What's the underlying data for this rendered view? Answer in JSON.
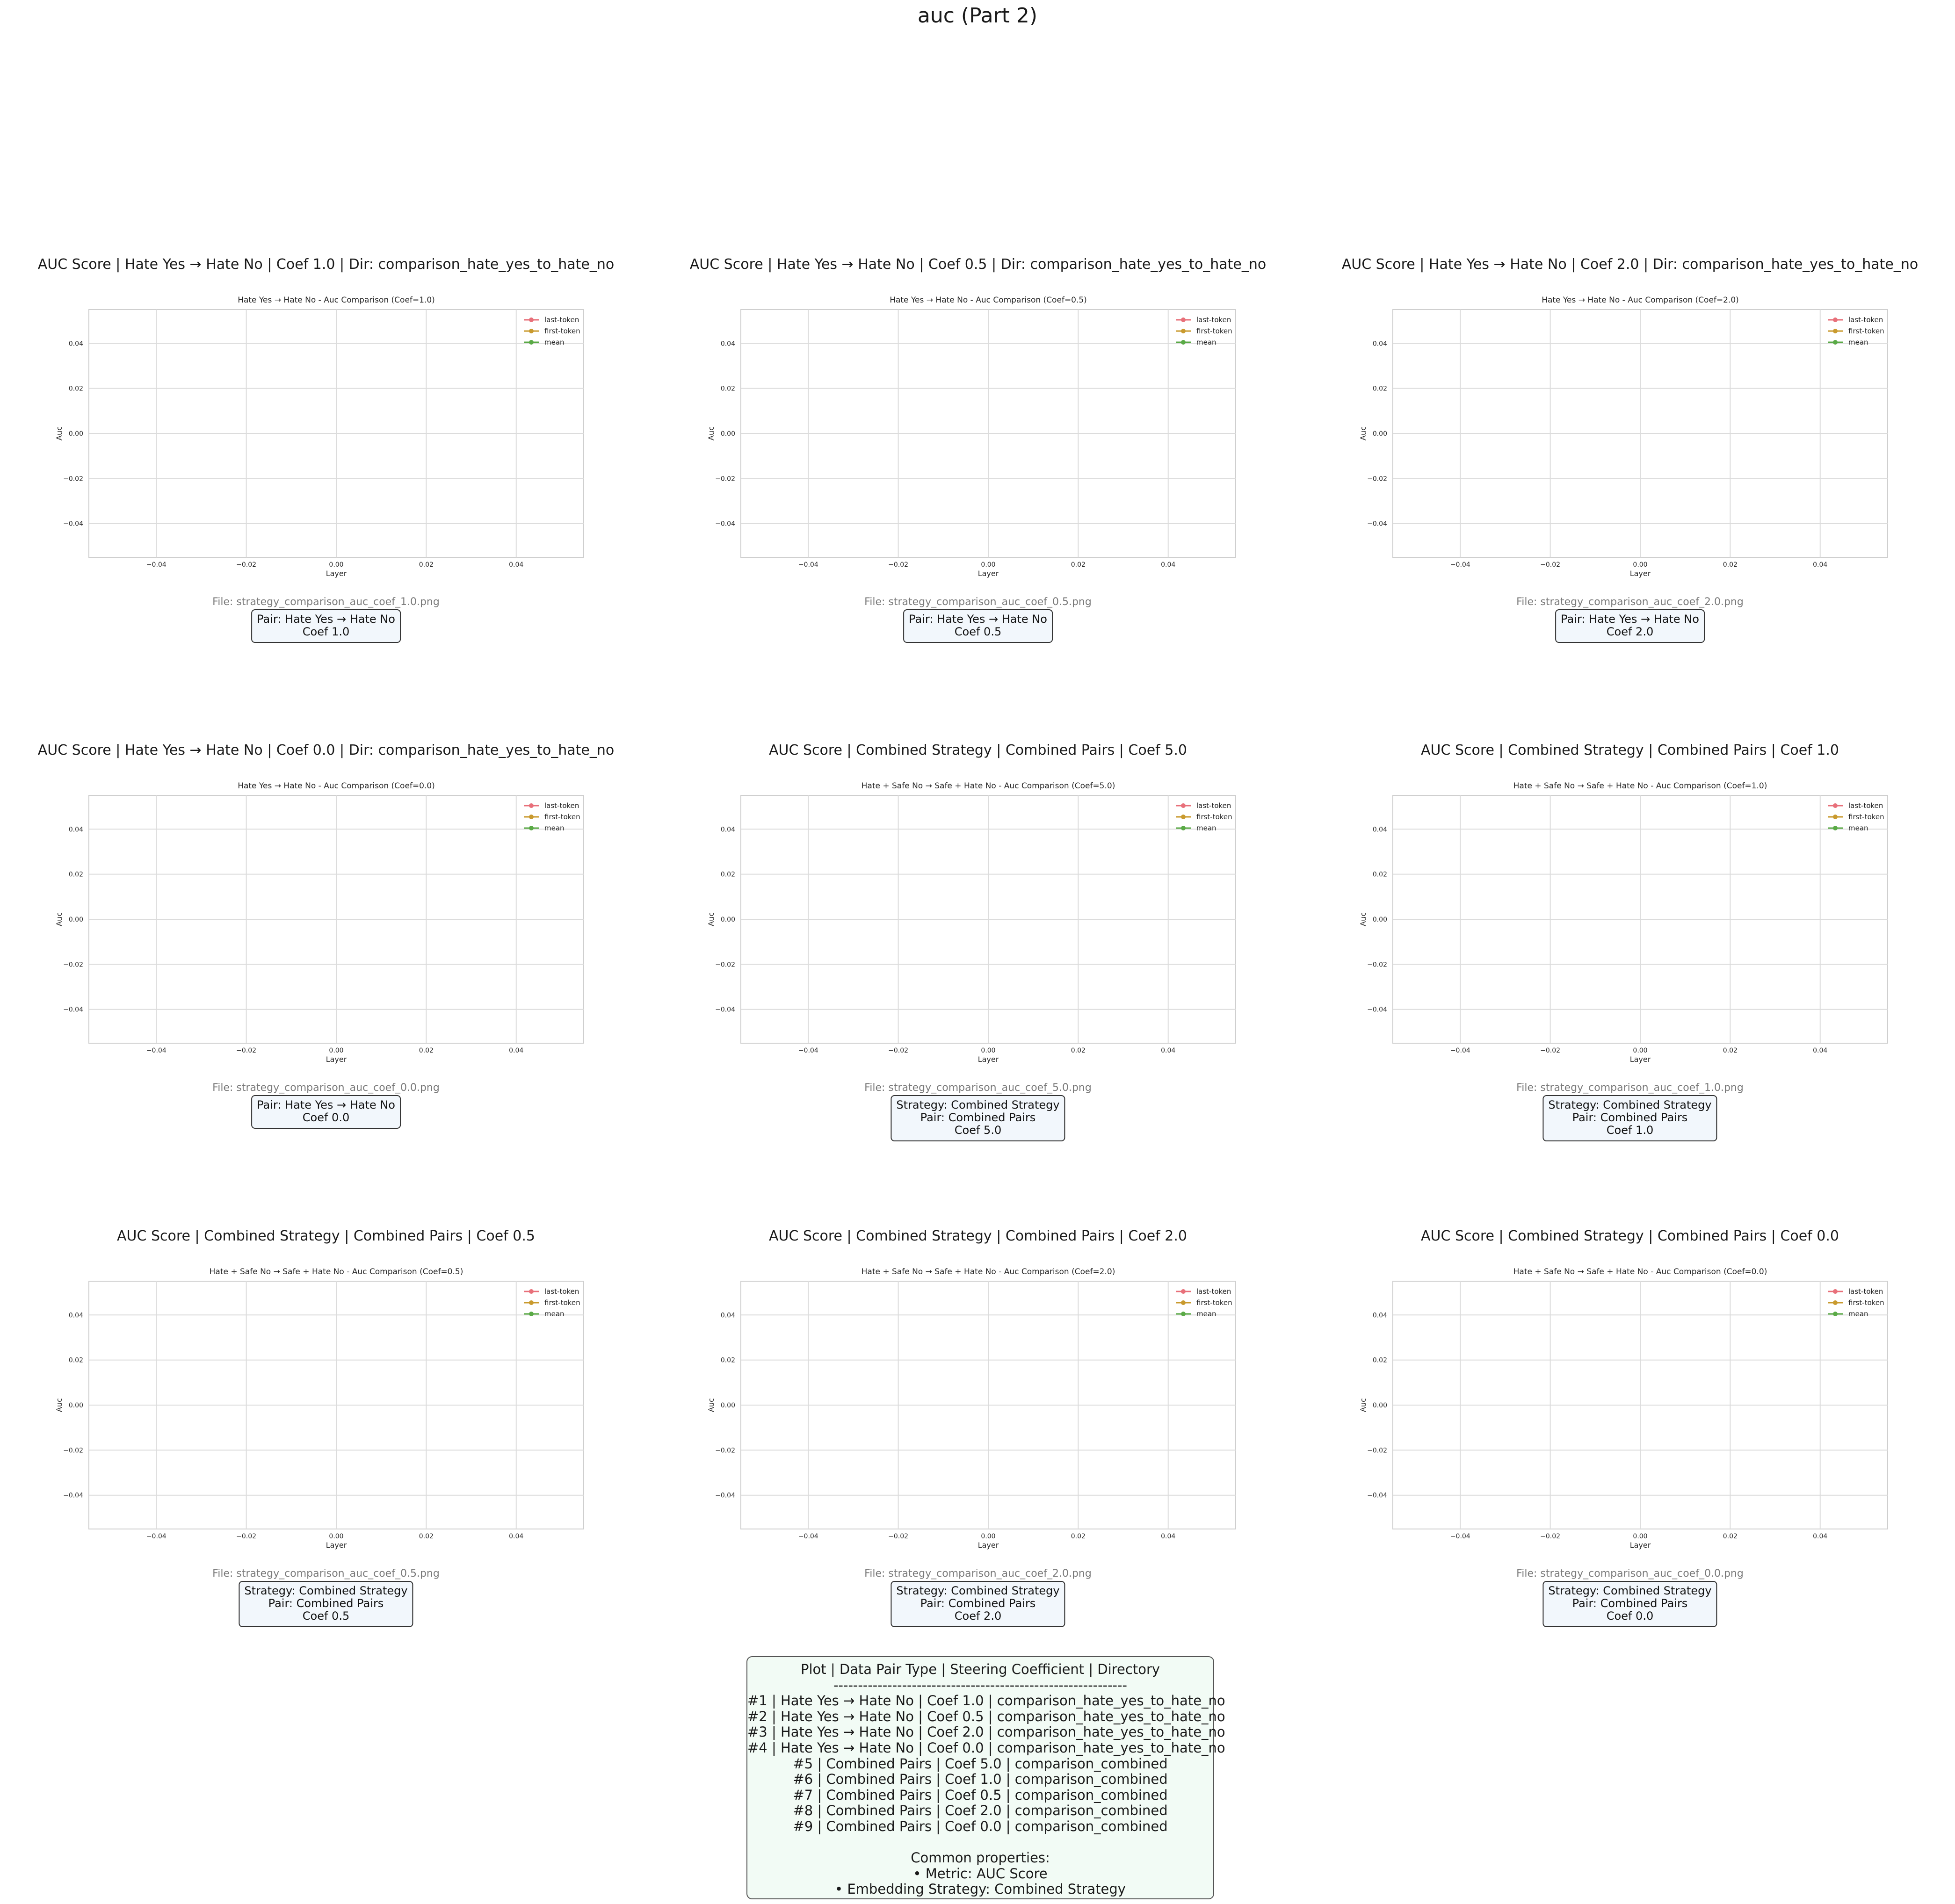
{
  "page": {
    "title": "auc (Part 2)"
  },
  "axis_common": {
    "xlabel": "Layer",
    "ylabel": "Auc",
    "xticks": [
      "−0.04",
      "−0.02",
      "0.00",
      "0.02",
      "0.04"
    ],
    "yticks": [
      "0.04",
      "0.02",
      "0.00",
      "−0.02",
      "−0.04"
    ],
    "legend": [
      "last-token",
      "first-token",
      "mean"
    ]
  },
  "colors": {
    "last-token": "#e8707a",
    "first-token": "#c99a2e",
    "mean": "#5aaa46",
    "grid": "#dcdcdc",
    "frame": "#cfcfcf"
  },
  "cells": [
    {
      "title": "AUC Score | Hate Yes → Hate No | Coef 1.0 | Dir: comparison_hate_yes_to_hate_no",
      "plot_title": "Hate Yes → Hate No - Auc Comparison (Coef=1.0)",
      "file": "File: strategy_comparison_auc_coef_1.0.png",
      "box": [
        "Pair: Hate Yes → Hate No",
        "Coef 1.0"
      ]
    },
    {
      "title": "AUC Score | Hate Yes → Hate No | Coef 0.5 | Dir: comparison_hate_yes_to_hate_no",
      "plot_title": "Hate Yes → Hate No - Auc Comparison (Coef=0.5)",
      "file": "File: strategy_comparison_auc_coef_0.5.png",
      "box": [
        "Pair: Hate Yes → Hate No",
        "Coef 0.5"
      ]
    },
    {
      "title": "AUC Score | Hate Yes → Hate No | Coef 2.0 | Dir: comparison_hate_yes_to_hate_no",
      "plot_title": "Hate Yes → Hate No - Auc Comparison (Coef=2.0)",
      "file": "File: strategy_comparison_auc_coef_2.0.png",
      "box": [
        "Pair: Hate Yes → Hate No",
        "Coef 2.0"
      ]
    },
    {
      "title": "AUC Score | Hate Yes → Hate No | Coef 0.0 | Dir: comparison_hate_yes_to_hate_no",
      "plot_title": "Hate Yes → Hate No - Auc Comparison (Coef=0.0)",
      "file": "File: strategy_comparison_auc_coef_0.0.png",
      "box": [
        "Pair: Hate Yes → Hate No",
        "Coef 0.0"
      ]
    },
    {
      "title": "AUC Score | Combined Strategy | Combined Pairs | Coef 5.0",
      "plot_title": "Hate + Safe No → Safe + Hate No - Auc Comparison (Coef=5.0)",
      "file": "File: strategy_comparison_auc_coef_5.0.png",
      "box": [
        "Strategy: Combined Strategy",
        "Pair: Combined Pairs",
        "Coef 5.0"
      ]
    },
    {
      "title": "AUC Score | Combined Strategy | Combined Pairs | Coef 1.0",
      "plot_title": "Hate + Safe No → Safe + Hate No - Auc Comparison (Coef=1.0)",
      "file": "File: strategy_comparison_auc_coef_1.0.png",
      "box": [
        "Strategy: Combined Strategy",
        "Pair: Combined Pairs",
        "Coef 1.0"
      ]
    },
    {
      "title": "AUC Score | Combined Strategy | Combined Pairs | Coef 0.5",
      "plot_title": "Hate + Safe No → Safe + Hate No - Auc Comparison (Coef=0.5)",
      "file": "File: strategy_comparison_auc_coef_0.5.png",
      "box": [
        "Strategy: Combined Strategy",
        "Pair: Combined Pairs",
        "Coef 0.5"
      ]
    },
    {
      "title": "AUC Score | Combined Strategy | Combined Pairs | Coef 2.0",
      "plot_title": "Hate + Safe No → Safe + Hate No - Auc Comparison (Coef=2.0)",
      "file": "File: strategy_comparison_auc_coef_2.0.png",
      "box": [
        "Strategy: Combined Strategy",
        "Pair: Combined Pairs",
        "Coef 2.0"
      ]
    },
    {
      "title": "AUC Score | Combined Strategy | Combined Pairs | Coef 0.0",
      "plot_title": "Hate + Safe No → Safe + Hate No - Auc Comparison (Coef=0.0)",
      "file": "File: strategy_comparison_auc_coef_0.0.png",
      "box": [
        "Strategy: Combined Strategy",
        "Pair: Combined Pairs",
        "Coef 0.0"
      ]
    }
  ],
  "summary": {
    "lines": [
      "Plot | Data Pair Type | Steering Coefficient | Directory",
      "------------------------------------------------------------",
      "#1 | Hate Yes → Hate No | Coef 1.0 | comparison_hate_yes_to_hate_no",
      "#2 | Hate Yes → Hate No | Coef 0.5 | comparison_hate_yes_to_hate_no",
      "#3 | Hate Yes → Hate No | Coef 2.0 | comparison_hate_yes_to_hate_no",
      "#4 | Hate Yes → Hate No | Coef 0.0 | comparison_hate_yes_to_hate_no",
      "#5 | Combined Pairs | Coef 5.0 | comparison_combined",
      "#6 | Combined Pairs | Coef 1.0 | comparison_combined",
      "#7 | Combined Pairs | Coef 0.5 | comparison_combined",
      "#8 | Combined Pairs | Coef 2.0 | comparison_combined",
      "#9 | Combined Pairs | Coef 0.0 | comparison_combined",
      "",
      "Common properties:",
      "• Metric: AUC Score",
      "• Embedding Strategy: Combined Strategy"
    ]
  },
  "chart_data": {
    "type": "line",
    "series": [
      {
        "name": "last-token",
        "values": []
      },
      {
        "name": "first-token",
        "values": []
      },
      {
        "name": "mean",
        "values": []
      }
    ],
    "xlabel": "Layer",
    "ylabel": "Auc",
    "xlim": [
      -0.055,
      0.055
    ],
    "ylim": [
      -0.055,
      0.055
    ],
    "grid": true,
    "legend_position": "top-right"
  }
}
